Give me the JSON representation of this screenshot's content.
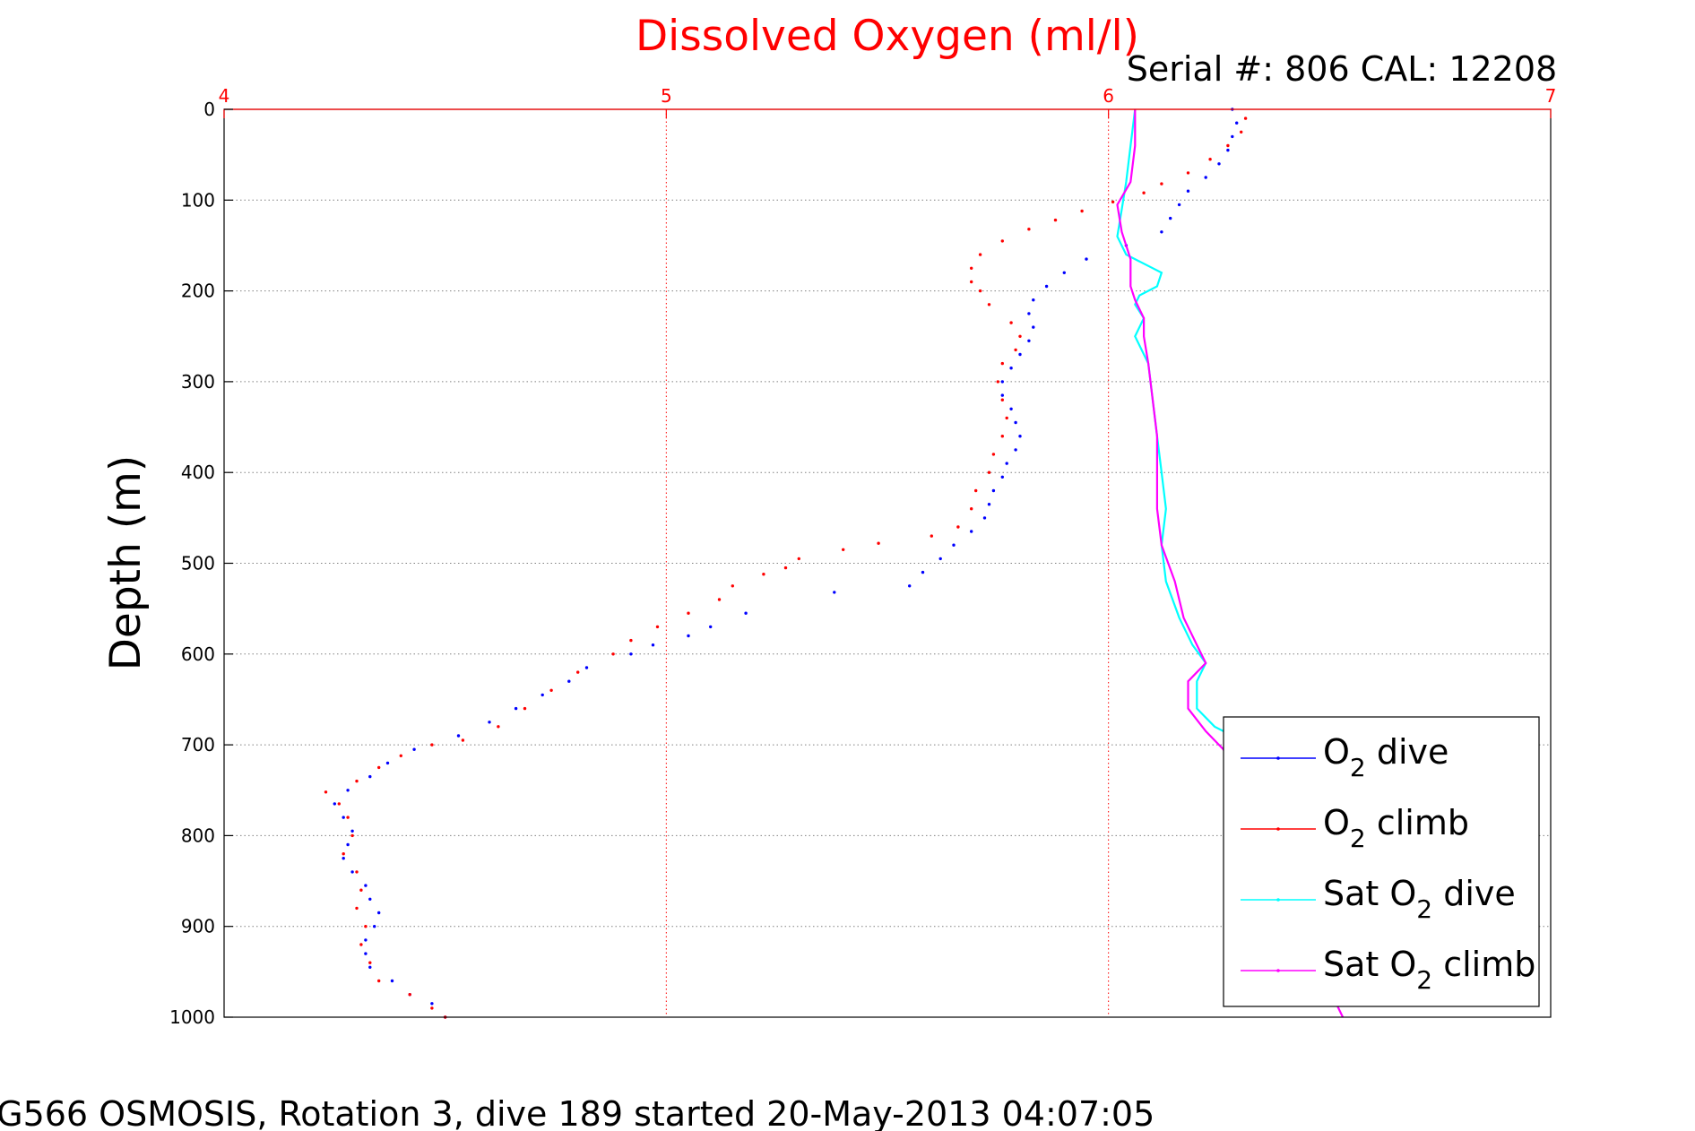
{
  "chart_data": {
    "type": "scatter",
    "title": "Dissolved Oxygen (ml/l)",
    "subtitle": "Serial #: 806  CAL: 12208",
    "xlabel": "",
    "ylabel": "Depth (m)",
    "caption": "SG566 OSMOSIS, Rotation 3, dive 189 started 20-May-2013 04:07:05",
    "xlim": [
      4,
      7
    ],
    "ylim": [
      0,
      1000
    ],
    "y_reversed": true,
    "x_axis_position": "top",
    "xticks": [
      "4",
      "5",
      "6",
      "7"
    ],
    "yticks": [
      "0",
      "100",
      "200",
      "300",
      "400",
      "500",
      "600",
      "700",
      "800",
      "900",
      "1000"
    ],
    "grid": true,
    "legend_position": "bottom-right",
    "colors": {
      "title": "#ff0000",
      "x_axis": "#ff0000",
      "y_axis": "#000000",
      "grid": "#808080"
    },
    "series": [
      {
        "name": "O2 dive",
        "legend_base": "O",
        "legend_sub": "2",
        "legend_suffix": " dive",
        "color": "#0000ff",
        "style": "dots",
        "points": [
          [
            6.28,
            0
          ],
          [
            6.29,
            15
          ],
          [
            6.28,
            30
          ],
          [
            6.27,
            45
          ],
          [
            6.25,
            60
          ],
          [
            6.22,
            75
          ],
          [
            6.18,
            90
          ],
          [
            6.16,
            105
          ],
          [
            6.14,
            120
          ],
          [
            6.12,
            135
          ],
          [
            6.04,
            150
          ],
          [
            5.95,
            165
          ],
          [
            5.9,
            180
          ],
          [
            5.86,
            195
          ],
          [
            5.83,
            210
          ],
          [
            5.82,
            225
          ],
          [
            5.83,
            240
          ],
          [
            5.82,
            255
          ],
          [
            5.8,
            270
          ],
          [
            5.78,
            285
          ],
          [
            5.76,
            300
          ],
          [
            5.76,
            315
          ],
          [
            5.78,
            330
          ],
          [
            5.79,
            345
          ],
          [
            5.8,
            360
          ],
          [
            5.79,
            375
          ],
          [
            5.77,
            390
          ],
          [
            5.76,
            405
          ],
          [
            5.74,
            420
          ],
          [
            5.73,
            435
          ],
          [
            5.72,
            450
          ],
          [
            5.69,
            465
          ],
          [
            5.65,
            480
          ],
          [
            5.62,
            495
          ],
          [
            5.58,
            510
          ],
          [
            5.55,
            525
          ],
          [
            5.38,
            532
          ],
          [
            5.18,
            555
          ],
          [
            5.1,
            570
          ],
          [
            5.05,
            580
          ],
          [
            4.97,
            590
          ],
          [
            4.92,
            600
          ],
          [
            4.82,
            615
          ],
          [
            4.78,
            630
          ],
          [
            4.72,
            645
          ],
          [
            4.66,
            660
          ],
          [
            4.6,
            675
          ],
          [
            4.53,
            690
          ],
          [
            4.43,
            705
          ],
          [
            4.37,
            720
          ],
          [
            4.33,
            735
          ],
          [
            4.28,
            750
          ],
          [
            4.25,
            765
          ],
          [
            4.27,
            780
          ],
          [
            4.29,
            795
          ],
          [
            4.28,
            810
          ],
          [
            4.27,
            825
          ],
          [
            4.29,
            840
          ],
          [
            4.32,
            855
          ],
          [
            4.33,
            870
          ],
          [
            4.35,
            885
          ],
          [
            4.34,
            900
          ],
          [
            4.32,
            915
          ],
          [
            4.32,
            930
          ],
          [
            4.33,
            945
          ],
          [
            4.38,
            960
          ],
          [
            4.42,
            975
          ],
          [
            4.47,
            985
          ],
          [
            4.5,
            1000
          ]
        ]
      },
      {
        "name": "O2 climb",
        "legend_base": "O",
        "legend_sub": "2",
        "legend_suffix": " climb",
        "color": "#ff0000",
        "style": "dots",
        "points": [
          [
            6.31,
            10
          ],
          [
            6.3,
            25
          ],
          [
            6.27,
            40
          ],
          [
            6.23,
            55
          ],
          [
            6.18,
            70
          ],
          [
            6.12,
            82
          ],
          [
            6.08,
            92
          ],
          [
            6.01,
            102
          ],
          [
            5.94,
            112
          ],
          [
            5.88,
            122
          ],
          [
            5.82,
            132
          ],
          [
            5.76,
            145
          ],
          [
            5.71,
            160
          ],
          [
            5.69,
            175
          ],
          [
            5.69,
            190
          ],
          [
            5.71,
            200
          ],
          [
            5.73,
            215
          ],
          [
            5.78,
            235
          ],
          [
            5.8,
            250
          ],
          [
            5.79,
            265
          ],
          [
            5.76,
            280
          ],
          [
            5.75,
            300
          ],
          [
            5.76,
            320
          ],
          [
            5.77,
            340
          ],
          [
            5.76,
            360
          ],
          [
            5.74,
            380
          ],
          [
            5.73,
            400
          ],
          [
            5.7,
            420
          ],
          [
            5.69,
            440
          ],
          [
            5.66,
            460
          ],
          [
            5.6,
            470
          ],
          [
            5.48,
            478
          ],
          [
            5.4,
            485
          ],
          [
            5.3,
            495
          ],
          [
            5.27,
            505
          ],
          [
            5.22,
            512
          ],
          [
            5.15,
            525
          ],
          [
            5.12,
            540
          ],
          [
            5.05,
            555
          ],
          [
            4.98,
            570
          ],
          [
            4.92,
            585
          ],
          [
            4.88,
            600
          ],
          [
            4.8,
            620
          ],
          [
            4.74,
            640
          ],
          [
            4.68,
            660
          ],
          [
            4.62,
            680
          ],
          [
            4.54,
            695
          ],
          [
            4.47,
            700
          ],
          [
            4.4,
            712
          ],
          [
            4.35,
            725
          ],
          [
            4.3,
            740
          ],
          [
            4.23,
            752
          ],
          [
            4.26,
            765
          ],
          [
            4.28,
            780
          ],
          [
            4.29,
            800
          ],
          [
            4.27,
            820
          ],
          [
            4.3,
            840
          ],
          [
            4.31,
            860
          ],
          [
            4.3,
            880
          ],
          [
            4.32,
            900
          ],
          [
            4.31,
            920
          ],
          [
            4.33,
            940
          ],
          [
            4.35,
            960
          ],
          [
            4.42,
            975
          ],
          [
            4.47,
            990
          ],
          [
            4.5,
            1000
          ]
        ]
      },
      {
        "name": "Sat O2 dive",
        "legend_base": "Sat O",
        "legend_sub": "2",
        "legend_suffix": " dive",
        "color": "#00ffff",
        "style": "line",
        "points": [
          [
            6.06,
            0
          ],
          [
            6.05,
            40
          ],
          [
            6.04,
            80
          ],
          [
            6.03,
            110
          ],
          [
            6.02,
            140
          ],
          [
            6.04,
            160
          ],
          [
            6.08,
            170
          ],
          [
            6.12,
            180
          ],
          [
            6.11,
            195
          ],
          [
            6.07,
            205
          ],
          [
            6.06,
            215
          ],
          [
            6.08,
            230
          ],
          [
            6.06,
            250
          ],
          [
            6.09,
            280
          ],
          [
            6.1,
            320
          ],
          [
            6.11,
            360
          ],
          [
            6.12,
            400
          ],
          [
            6.13,
            440
          ],
          [
            6.12,
            480
          ],
          [
            6.13,
            520
          ],
          [
            6.16,
            560
          ],
          [
            6.19,
            590
          ],
          [
            6.22,
            610
          ],
          [
            6.2,
            630
          ],
          [
            6.2,
            660
          ],
          [
            6.24,
            680
          ],
          [
            6.3,
            695
          ]
        ]
      },
      {
        "name": "Sat O2 climb",
        "legend_base": "Sat O",
        "legend_sub": "2",
        "legend_suffix": " climb",
        "color": "#ff00ff",
        "style": "line",
        "points": [
          [
            6.06,
            0
          ],
          [
            6.06,
            40
          ],
          [
            6.05,
            80
          ],
          [
            6.02,
            105
          ],
          [
            6.03,
            135
          ],
          [
            6.05,
            165
          ],
          [
            6.05,
            195
          ],
          [
            6.06,
            210
          ],
          [
            6.08,
            230
          ],
          [
            6.08,
            250
          ],
          [
            6.09,
            280
          ],
          [
            6.1,
            320
          ],
          [
            6.11,
            360
          ],
          [
            6.11,
            400
          ],
          [
            6.11,
            440
          ],
          [
            6.12,
            480
          ],
          [
            6.15,
            520
          ],
          [
            6.17,
            560
          ],
          [
            6.2,
            590
          ],
          [
            6.22,
            610
          ],
          [
            6.18,
            630
          ],
          [
            6.18,
            660
          ],
          [
            6.22,
            685
          ],
          [
            6.26,
            705
          ],
          [
            6.52,
            990
          ],
          [
            6.53,
            1000
          ]
        ]
      }
    ]
  }
}
